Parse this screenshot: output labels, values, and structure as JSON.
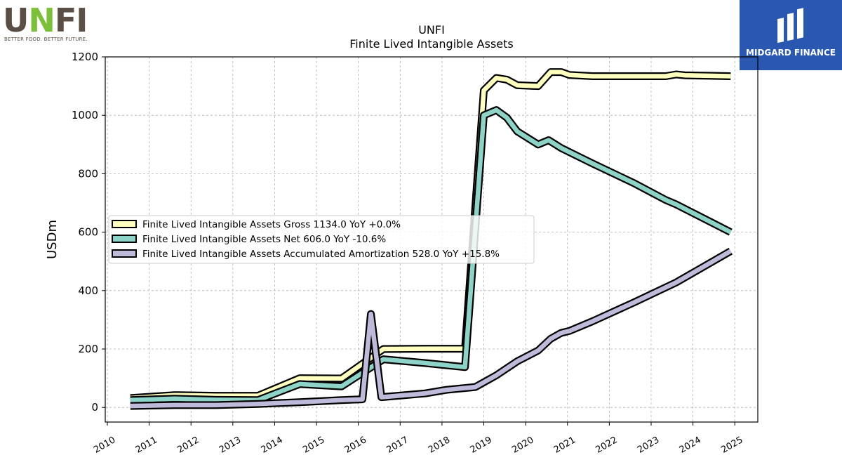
{
  "logos": {
    "left": {
      "wordmark_u": "U",
      "wordmark_n": "N",
      "wordmark_fi": "FI",
      "tagline": "BETTER FOOD. BETTER FUTURE."
    },
    "right": {
      "brand": "MIDGARD FINANCE"
    }
  },
  "chart_data": {
    "type": "line",
    "title": "UNFI",
    "subtitle": "Finite Lived Intangible Assets",
    "ylabel": "USDm",
    "xlabel": "",
    "xlim": [
      2009.95,
      2025.55
    ],
    "ylim": [
      -50,
      1200
    ],
    "xticks": [
      "2010",
      "2011",
      "2012",
      "2013",
      "2014",
      "2015",
      "2016",
      "2017",
      "2018",
      "2019",
      "2020",
      "2021",
      "2022",
      "2023",
      "2024",
      "2025"
    ],
    "yticks": [
      0,
      200,
      400,
      600,
      800,
      1000,
      1200
    ],
    "grid": true,
    "legend_position": "center-left",
    "series": [
      {
        "name": "Finite Lived Intangible Assets Gross",
        "legend": "Finite Lived Intangible Assets Gross  1134.0 YoY +0.0%",
        "color": "#ffffbf",
        "points": [
          [
            2010.55,
            32
          ],
          [
            2011.6,
            42
          ],
          [
            2012.6,
            40
          ],
          [
            2013.6,
            40
          ],
          [
            2014.6,
            100
          ],
          [
            2015.6,
            99
          ],
          [
            2016.6,
            200
          ],
          [
            2017.6,
            201
          ],
          [
            2018.55,
            201
          ],
          [
            2019.0,
            1085
          ],
          [
            2019.3,
            1128
          ],
          [
            2019.55,
            1122
          ],
          [
            2019.8,
            1103
          ],
          [
            2020.3,
            1100
          ],
          [
            2020.6,
            1148
          ],
          [
            2020.85,
            1148
          ],
          [
            2021.05,
            1138
          ],
          [
            2021.6,
            1134
          ],
          [
            2022.6,
            1134
          ],
          [
            2023.35,
            1134
          ],
          [
            2023.6,
            1140
          ],
          [
            2023.8,
            1137
          ],
          [
            2024.9,
            1134
          ]
        ]
      },
      {
        "name": "Finite Lived Intangible Assets Net",
        "legend": "Finite Lived Intangible Assets Net  606.0 YoY -10.6%",
        "color": "#8dd3c7",
        "points": [
          [
            2010.55,
            25
          ],
          [
            2011.6,
            30
          ],
          [
            2012.6,
            26
          ],
          [
            2013.6,
            25
          ],
          [
            2014.6,
            80
          ],
          [
            2015.6,
            72
          ],
          [
            2016.6,
            165
          ],
          [
            2017.6,
            152
          ],
          [
            2018.55,
            138
          ],
          [
            2019.0,
            1000
          ],
          [
            2019.3,
            1018
          ],
          [
            2019.55,
            992
          ],
          [
            2019.8,
            945
          ],
          [
            2020.3,
            900
          ],
          [
            2020.55,
            915
          ],
          [
            2020.85,
            888
          ],
          [
            2021.6,
            835
          ],
          [
            2022.6,
            767
          ],
          [
            2023.35,
            710
          ],
          [
            2023.6,
            695
          ],
          [
            2024.9,
            600
          ]
        ]
      },
      {
        "name": "Finite Lived Intangible Assets Accumulated Amortization",
        "legend": "Finite Lived Intangible Assets Accumulated Amortization  528.0 YoY +15.8%",
        "color": "#bebada",
        "points": [
          [
            2010.55,
            5
          ],
          [
            2011.6,
            8
          ],
          [
            2012.6,
            8
          ],
          [
            2013.6,
            12
          ],
          [
            2014.6,
            18
          ],
          [
            2015.6,
            25
          ],
          [
            2016.1,
            28
          ],
          [
            2016.3,
            320
          ],
          [
            2016.55,
            35
          ],
          [
            2017.6,
            48
          ],
          [
            2018.1,
            60
          ],
          [
            2018.8,
            70
          ],
          [
            2019.3,
            110
          ],
          [
            2019.8,
            158
          ],
          [
            2020.3,
            195
          ],
          [
            2020.6,
            235
          ],
          [
            2020.85,
            255
          ],
          [
            2021.05,
            262
          ],
          [
            2021.6,
            295
          ],
          [
            2022.6,
            360
          ],
          [
            2023.6,
            428
          ],
          [
            2024.9,
            535
          ]
        ]
      }
    ]
  }
}
